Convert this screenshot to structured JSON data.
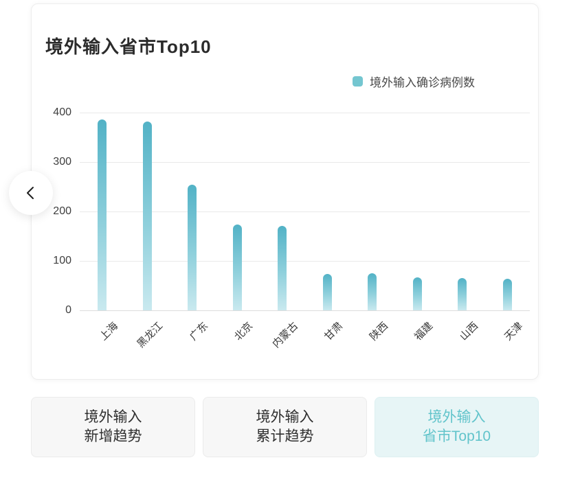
{
  "card": {
    "title": "境外输入省市Top10"
  },
  "legend": {
    "label": "境外输入确诊病例数",
    "color": "#74c6d0"
  },
  "chart_data": {
    "type": "bar",
    "title": "境外输入省市Top10",
    "series_name": "境外输入确诊病例数",
    "categories": [
      "上海",
      "黑龙江",
      "广东",
      "北京",
      "内蒙古",
      "甘肃",
      "陕西",
      "福建",
      "山西",
      "天津"
    ],
    "values": [
      386,
      382,
      254,
      173,
      171,
      74,
      75,
      67,
      65,
      64
    ],
    "xlabel": "",
    "ylabel": "",
    "ylim": [
      0,
      400
    ],
    "yticks": [
      0,
      100,
      200,
      300,
      400
    ],
    "grid": true,
    "legend_position": "top-right",
    "bar_color_top": "#52b2c6",
    "bar_color_bottom": "#c9e9ef"
  },
  "nav": {
    "back_icon": "chevron-left"
  },
  "tabs": [
    {
      "line1": "境外输入",
      "line2": "新增趋势",
      "active": false
    },
    {
      "line1": "境外输入",
      "line2": "累计趋势",
      "active": false
    },
    {
      "line1": "境外输入",
      "line2": "省市Top10",
      "active": true
    }
  ],
  "colors": {
    "active_tab_bg": "#e7f5f6",
    "active_tab_text": "#62c4cb",
    "inactive_tab_bg": "#f7f7f7",
    "grid_line": "#e9e9e9"
  }
}
